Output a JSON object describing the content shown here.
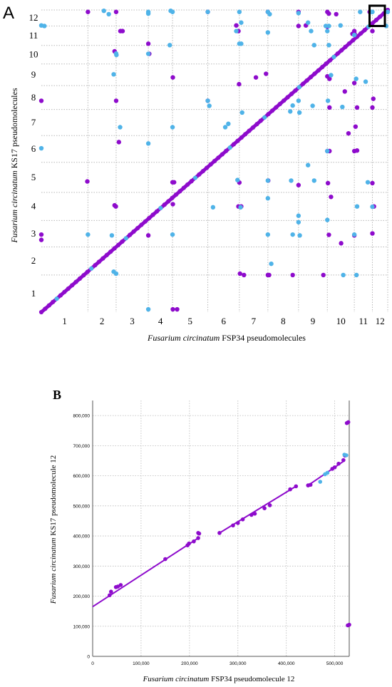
{
  "colors": {
    "purple": "#8e0bcc",
    "blue": "#4fb3e8",
    "grid": "#b8b8b8",
    "axis": "#000000"
  },
  "chart_data": [
    {
      "panel": "A",
      "type": "scatter",
      "panel_label": "A",
      "xlabel_italic": "Fusarium circinatum",
      "xlabel_rest": " FSP34 pseudomolecules",
      "ylabel_italic": "Fusarium circinatum",
      "ylabel_rest": " KS17 pseudomolecules",
      "x_chromosomes": [
        "1",
        "2",
        "3",
        "4",
        "5",
        "6",
        "7",
        "8",
        "9",
        "10",
        "11",
        "12"
      ],
      "y_chromosomes": [
        "1",
        "2",
        "3",
        "4",
        "5",
        "6",
        "7",
        "8",
        "9",
        "10",
        "11",
        "12"
      ],
      "x_boundaries": [
        0,
        1.52,
        2.44,
        3.49,
        4.28,
        5.43,
        6.46,
        7.39,
        8.39,
        9.33,
        10.21,
        10.8,
        11.3
      ],
      "y_boundaries": [
        0,
        1.32,
        2.32,
        3.26,
        4.26,
        5.33,
        6.28,
        7.21,
        8.06,
        8.83,
        9.49,
        10.18,
        10.75
      ],
      "xlim": [
        0,
        11.3
      ],
      "ylim": [
        0,
        10.75
      ],
      "diagonal_segments": [
        [
          0,
          0,
          11.3,
          10.75
        ]
      ],
      "series": [
        {
          "color": "purple",
          "points": [
            [
              1.52,
              10.68
            ],
            [
              2.44,
              10.68
            ],
            [
              2.58,
              10.0
            ],
            [
              2.65,
              10.0
            ],
            [
              2.39,
              9.28
            ],
            [
              3.49,
              9.55
            ],
            [
              3.52,
              9.19
            ],
            [
              4.29,
              8.35
            ],
            [
              0.0,
              7.52
            ],
            [
              2.44,
              7.52
            ],
            [
              2.53,
              6.05
            ],
            [
              1.5,
              4.65
            ],
            [
              2.39,
              3.8
            ],
            [
              2.43,
              3.76
            ],
            [
              4.28,
              4.62
            ],
            [
              4.33,
              4.62
            ],
            [
              4.29,
              3.84
            ],
            [
              3.49,
              2.73
            ],
            [
              0.0,
              2.76
            ],
            [
              0.0,
              2.57
            ],
            [
              4.29,
              0.1
            ],
            [
              4.43,
              0.1
            ],
            [
              5.43,
              10.68
            ],
            [
              6.36,
              10.2
            ],
            [
              6.43,
              10.0
            ],
            [
              5.43,
              7.52
            ],
            [
              6.45,
              8.11
            ],
            [
              7.33,
              8.48
            ],
            [
              7.0,
              8.35
            ],
            [
              7.39,
              10.68
            ],
            [
              8.39,
              10.68
            ],
            [
              9.33,
              10.68
            ],
            [
              9.38,
              10.62
            ],
            [
              9.62,
              10.6
            ],
            [
              10.21,
              10.0
            ],
            [
              10.8,
              10.0
            ],
            [
              10.22,
              9.9
            ],
            [
              10.15,
              9.9
            ],
            [
              10.3,
              7.28
            ],
            [
              10.8,
              7.28
            ],
            [
              10.83,
              7.59
            ],
            [
              9.33,
              8.39
            ],
            [
              9.4,
              8.3
            ],
            [
              10.21,
              8.15
            ],
            [
              9.9,
              7.85
            ],
            [
              10.25,
              6.6
            ],
            [
              10.02,
              6.36
            ],
            [
              9.4,
              7.28
            ],
            [
              9.33,
              5.73
            ],
            [
              9.4,
              5.73
            ],
            [
              10.21,
              5.73
            ],
            [
              10.3,
              5.75
            ],
            [
              6.46,
              4.61
            ],
            [
              6.52,
              3.76
            ],
            [
              6.48,
              1.37
            ],
            [
              6.61,
              1.32
            ],
            [
              7.39,
              1.32
            ],
            [
              7.43,
              1.32
            ],
            [
              8.2,
              1.32
            ],
            [
              9.2,
              1.32
            ],
            [
              9.38,
              2.75
            ],
            [
              9.78,
              2.45
            ],
            [
              10.21,
              2.73
            ],
            [
              10.8,
              2.8
            ],
            [
              6.43,
              3.76
            ],
            [
              7.4,
              4.68
            ],
            [
              8.39,
              4.52
            ],
            [
              9.35,
              4.59
            ],
            [
              9.45,
              4.1
            ],
            [
              10.8,
              4.59
            ],
            [
              10.85,
              3.76
            ],
            [
              8.39,
              10.18
            ],
            [
              8.63,
              10.2
            ],
            [
              9.33,
              10.15
            ],
            [
              10.71,
              10.68
            ]
          ]
        },
        {
          "color": "blue",
          "points": [
            [
              2.04,
              10.72
            ],
            [
              2.2,
              10.6
            ],
            [
              3.49,
              10.68
            ],
            [
              3.49,
              10.62
            ],
            [
              4.22,
              10.72
            ],
            [
              4.28,
              10.68
            ],
            [
              3.49,
              9.19
            ],
            [
              0.1,
              10.18
            ],
            [
              0.0,
              10.2
            ],
            [
              2.44,
              9.2
            ],
            [
              2.45,
              9.15
            ],
            [
              4.19,
              9.5
            ],
            [
              2.36,
              8.46
            ],
            [
              2.57,
              6.58
            ],
            [
              3.49,
              6.0
            ],
            [
              4.28,
              6.58
            ],
            [
              0.0,
              5.83
            ],
            [
              1.52,
              2.76
            ],
            [
              2.3,
              2.73
            ],
            [
              4.28,
              2.76
            ],
            [
              2.36,
              1.44
            ],
            [
              2.44,
              1.37
            ],
            [
              3.49,
              0.1
            ],
            [
              5.43,
              10.68
            ],
            [
              6.46,
              10.68
            ],
            [
              6.52,
              10.3
            ],
            [
              6.36,
              10.0
            ],
            [
              6.46,
              9.55
            ],
            [
              6.52,
              9.55
            ],
            [
              7.39,
              10.68
            ],
            [
              7.45,
              10.6
            ],
            [
              7.39,
              9.95
            ],
            [
              8.39,
              10.64
            ],
            [
              8.7,
              10.3
            ],
            [
              8.8,
              10.0
            ],
            [
              8.9,
              9.5
            ],
            [
              9.38,
              10.18
            ],
            [
              9.28,
              10.18
            ],
            [
              9.76,
              10.2
            ],
            [
              9.33,
              10.0
            ],
            [
              9.38,
              9.5
            ],
            [
              9.45,
              8.43
            ],
            [
              10.21,
              9.86
            ],
            [
              10.27,
              8.3
            ],
            [
              10.58,
              8.2
            ],
            [
              10.4,
              10.68
            ],
            [
              10.8,
              10.68
            ],
            [
              5.43,
              7.52
            ],
            [
              5.48,
              7.34
            ],
            [
              5.6,
              3.73
            ],
            [
              6.4,
              4.7
            ],
            [
              6.5,
              3.73
            ],
            [
              6.0,
              6.58
            ],
            [
              6.1,
              6.7
            ],
            [
              7.39,
              4.68
            ],
            [
              7.39,
              4.05
            ],
            [
              7.39,
              2.76
            ],
            [
              8.39,
              3.43
            ],
            [
              8.39,
              3.2
            ],
            [
              8.2,
              2.76
            ],
            [
              8.43,
              2.73
            ],
            [
              8.15,
              4.68
            ],
            [
              8.9,
              4.68
            ],
            [
              8.12,
              7.14
            ],
            [
              8.39,
              7.52
            ],
            [
              8.2,
              7.35
            ],
            [
              8.7,
              5.23
            ],
            [
              9.33,
              5.73
            ],
            [
              9.33,
              3.28
            ],
            [
              10.3,
              3.76
            ],
            [
              10.8,
              3.75
            ],
            [
              10.21,
              2.76
            ],
            [
              10.28,
              1.32
            ],
            [
              9.85,
              1.32
            ],
            [
              8.85,
              7.34
            ],
            [
              9.35,
              7.52
            ],
            [
              9.82,
              7.3
            ],
            [
              10.65,
              4.62
            ],
            [
              10.78,
              10.68
            ],
            [
              11.3,
              10.68
            ],
            [
              11.25,
              10.18
            ],
            [
              7.5,
              1.72
            ],
            [
              8.42,
              7.1
            ],
            [
              6.55,
              7.1
            ]
          ]
        }
      ]
    },
    {
      "panel": "B",
      "type": "scatter",
      "panel_label": "B",
      "xlabel_italic": "Fusarium circinatum",
      "xlabel_rest": " FSP34 pseudomolecule 12",
      "ylabel_italic": "Fusarium circinatum",
      "ylabel_rest": " KS17 pseudomolecule 12",
      "xlim": [
        0,
        530000
      ],
      "ylim": [
        0,
        850000
      ],
      "x_ticks": [
        0,
        100000,
        200000,
        300000,
        400000,
        500000
      ],
      "x_tick_labels": [
        "0",
        "100,000",
        "200,000",
        "300,000",
        "400,000",
        "500,000"
      ],
      "y_ticks": [
        0,
        100000,
        200000,
        300000,
        400000,
        500000,
        600000,
        700000,
        800000
      ],
      "y_tick_labels": [
        "0",
        "100,000",
        "200,000",
        "300,000",
        "400,000",
        "500,000",
        "600,000",
        "700,000",
        "800,000"
      ],
      "grid": true,
      "line_segments": [
        [
          0,
          165000,
          220000,
          395000
        ],
        [
          262000,
          410000,
          422000,
          567000
        ],
        [
          445000,
          568000,
          520000,
          650000
        ]
      ],
      "series": [
        {
          "color": "purple",
          "points": [
            [
              35000,
              203000
            ],
            [
              38000,
              215000
            ],
            [
              48000,
              230000
            ],
            [
              52000,
              232000
            ],
            [
              58000,
              237000
            ],
            [
              150000,
              323000
            ],
            [
              196000,
              369000
            ],
            [
              199000,
              375000
            ],
            [
              209000,
              382000
            ],
            [
              218000,
              393000
            ],
            [
              220000,
              408000
            ],
            [
              218000,
              410000
            ],
            [
              262000,
              410000
            ],
            [
              290000,
              435000
            ],
            [
              300000,
              443000
            ],
            [
              310000,
              455000
            ],
            [
              328000,
              470000
            ],
            [
              335000,
              474000
            ],
            [
              355000,
              492000
            ],
            [
              366000,
              502000
            ],
            [
              408000,
              555000
            ],
            [
              420000,
              565000
            ],
            [
              445000,
              568000
            ],
            [
              450000,
              570000
            ],
            [
              495000,
              623000
            ],
            [
              500000,
              628000
            ],
            [
              508000,
              640000
            ],
            [
              518000,
              652000
            ],
            [
              521000,
              667000
            ],
            [
              525000,
              775000
            ],
            [
              528000,
              778000
            ],
            [
              527000,
              103000
            ],
            [
              530000,
              105000
            ]
          ]
        },
        {
          "color": "blue",
          "points": [
            [
              480000,
              605000
            ],
            [
              485000,
              610000
            ],
            [
              520000,
              670000
            ],
            [
              524000,
              668000
            ],
            [
              470000,
              580000
            ]
          ]
        }
      ]
    }
  ]
}
